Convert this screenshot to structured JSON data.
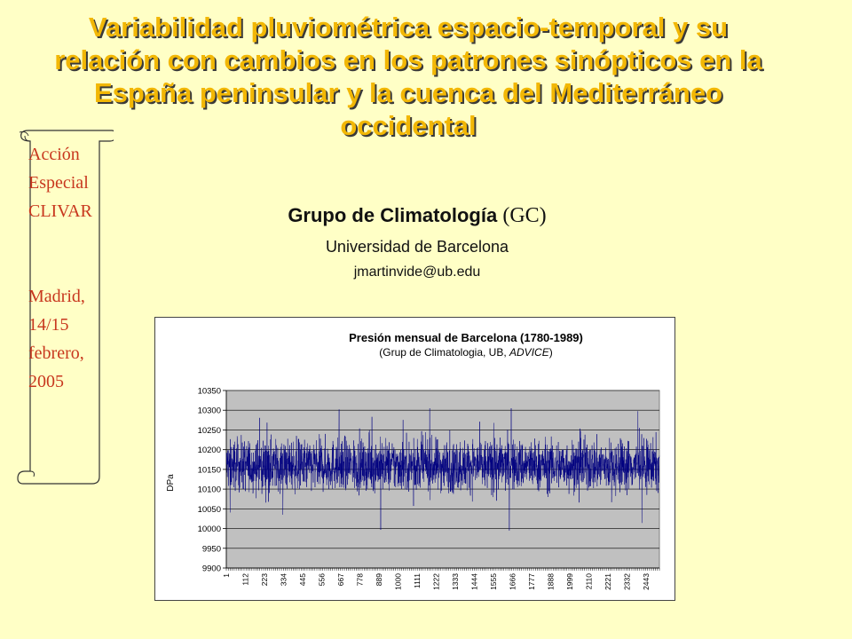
{
  "slide": {
    "title": "Variabilidad pluviométrica espacio-temporal y su relación con cambios en los patrones sinópticos en la España peninsular y la cuenca del Mediterráneo occidental",
    "title_color": "#f2b705",
    "group_name": "Grupo de Climatología",
    "group_abbr": "(GC)",
    "university": "Universidad de Barcelona",
    "email": "jmartinvide@ub.edu",
    "scroll_lines": [
      "Acción",
      "Especial",
      "CLIVAR",
      "",
      "Madrid,",
      "14/15",
      "febrero,",
      "2005"
    ],
    "scroll_text_color": "#c8371e",
    "background": "#ffffc6"
  },
  "chart_data": {
    "type": "line",
    "title": "Presión mensual de Barcelona (1780-1989)",
    "subtitle_plain": "(Grup de Climatologia, UB, ",
    "subtitle_italic": "ADVICE",
    "subtitle_end": ")",
    "ylabel": "DPa",
    "xlabel": "",
    "ylim": [
      9900,
      10350
    ],
    "yticks": [
      9900,
      9950,
      10000,
      10050,
      10100,
      10150,
      10200,
      10250,
      10300,
      10350
    ],
    "xticks": [
      "1",
      "112",
      "223",
      "334",
      "445",
      "556",
      "667",
      "778",
      "889",
      "1000",
      "1111",
      "1222",
      "1333",
      "1444",
      "1555",
      "1666",
      "1777",
      "1888",
      "1999",
      "2110",
      "2221",
      "2332",
      "2443"
    ],
    "x_range": [
      1,
      2520
    ],
    "n_points": 2520,
    "mean": 10160,
    "series_color": "#000080",
    "plot_background": "#c0c0c0",
    "grid": true,
    "legend": "none"
  }
}
